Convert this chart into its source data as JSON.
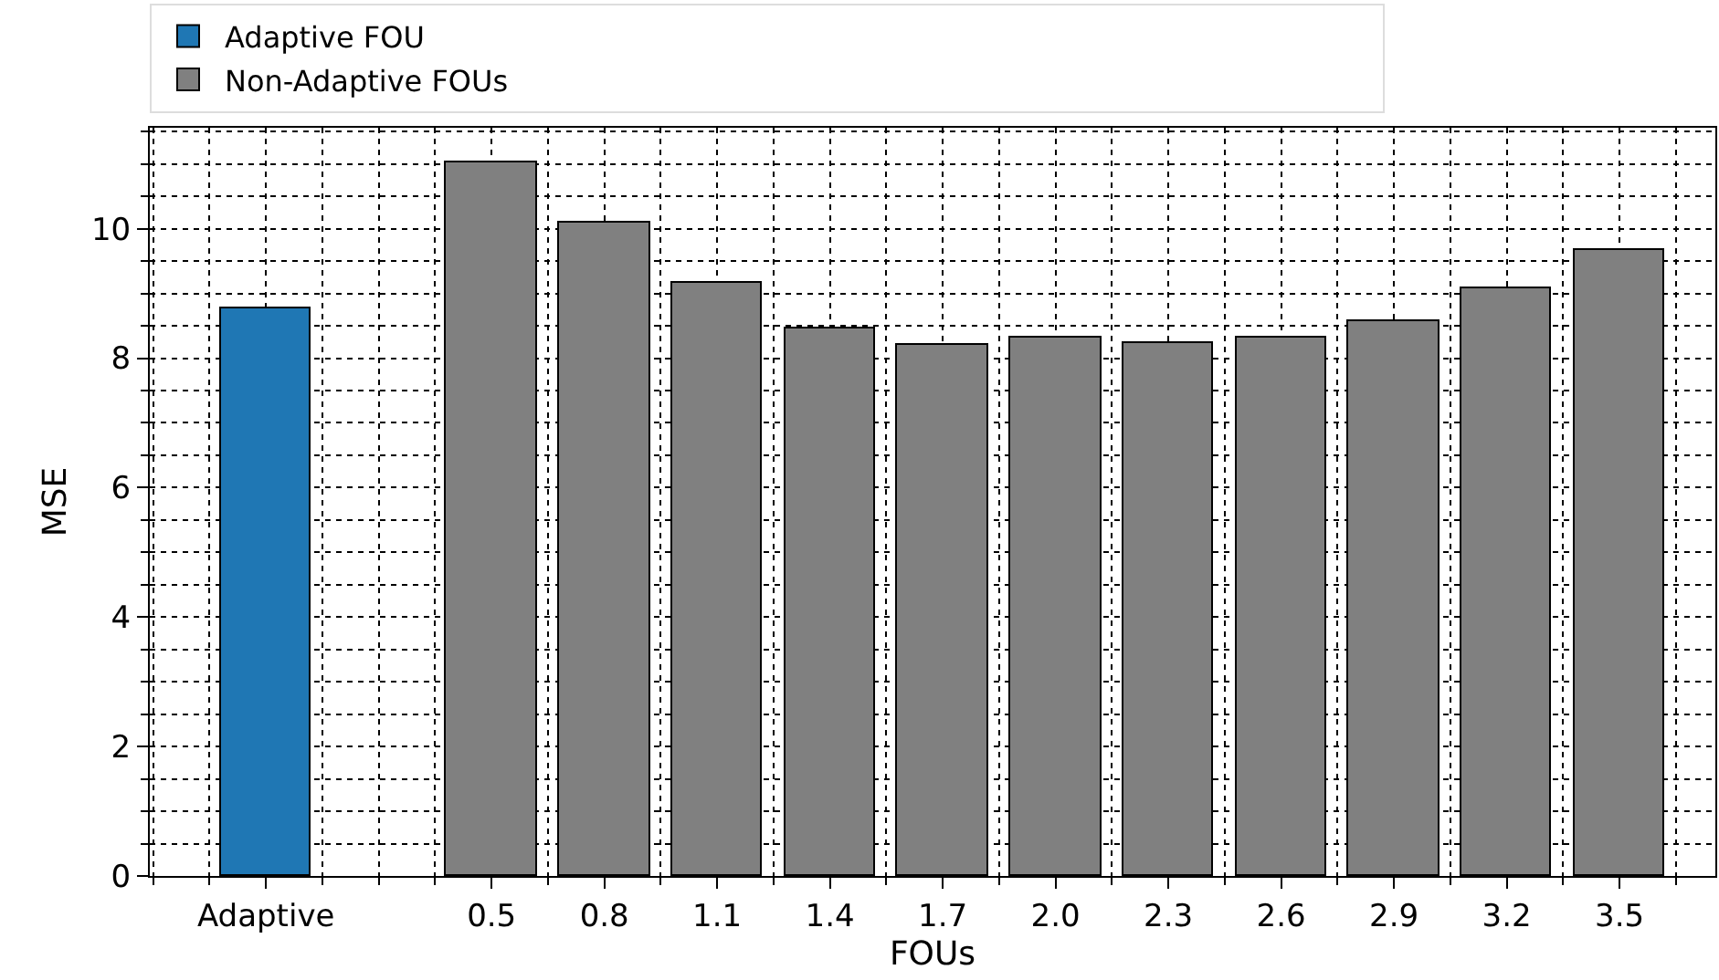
{
  "chart_data": {
    "type": "bar",
    "xlabel": "FOUs",
    "ylabel": "MSE",
    "categories": [
      "Adaptive",
      null,
      "0.5",
      "0.8",
      "1.1",
      "1.4",
      "1.7",
      "2.0",
      "2.3",
      "2.6",
      "2.9",
      "3.2",
      "3.5"
    ],
    "series": [
      {
        "name": "Adaptive FOU",
        "color": "#1f77b4",
        "values": [
          8.78,
          null,
          null,
          null,
          null,
          null,
          null,
          null,
          null,
          null,
          null,
          null,
          null
        ]
      },
      {
        "name": "Non-Adaptive FOUs",
        "color": "#808080",
        "values": [
          null,
          null,
          11.02,
          10.1,
          9.16,
          8.45,
          8.21,
          8.32,
          8.24,
          8.32,
          8.57,
          9.09,
          9.67
        ]
      }
    ],
    "ylim": [
      0,
      11.56
    ],
    "yticks": [
      0,
      2,
      4,
      6,
      8,
      10
    ],
    "grid": true,
    "legend": "top"
  }
}
